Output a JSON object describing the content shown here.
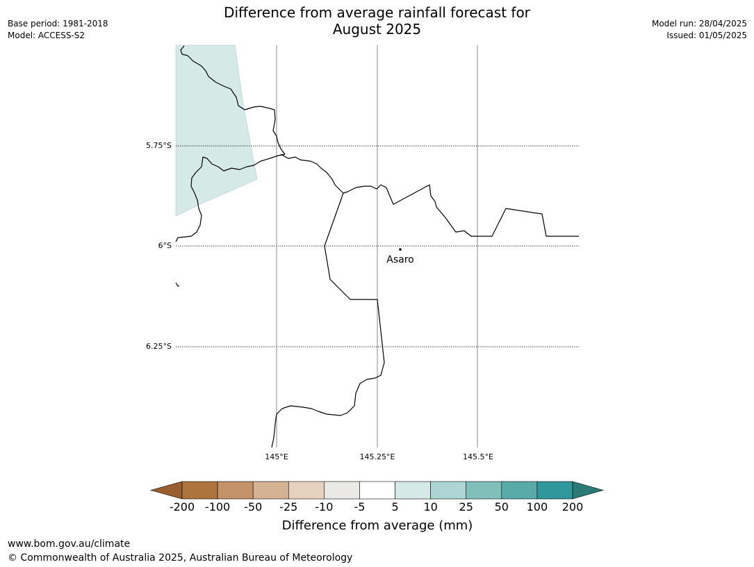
{
  "header": {
    "title_line1": "Difference from average rainfall forecast for",
    "title_line2": "August 2025",
    "base_period": "Base period: 1981-2018",
    "model": "Model: ACCESS-S2",
    "model_run": "Model run: 28/04/2025",
    "issued": "Issued: 01/05/2025"
  },
  "map": {
    "place_label": "Asaro",
    "lat_labels": [
      "5.75°S",
      "6°S",
      "6.25°S"
    ],
    "lon_labels": [
      "145°E",
      "145.25°E",
      "145.5°E"
    ],
    "shaded_category_color": "#d5e9e7",
    "boundary_color": "#000000",
    "gridline_color": "#888888"
  },
  "colorbar": {
    "title": "Difference from average (mm)",
    "tick_labels": [
      "-200",
      "-100",
      "-50",
      "-25",
      "-10",
      "-5",
      "5",
      "10",
      "25",
      "50",
      "100",
      "200"
    ],
    "colors": [
      "#9a5f30",
      "#ad743d",
      "#c39268",
      "#d4b294",
      "#e6d1be",
      "#ebe9e6",
      "#ffffff",
      "#d5e9e7",
      "#acd5d3",
      "#81bfbb",
      "#59aaa9",
      "#30989a",
      "#2a7a78"
    ]
  },
  "footer": {
    "url": "www.bom.gov.au/climate",
    "copyright": "© Commonwealth of Australia 2025, Australian Bureau of Meteorology"
  }
}
